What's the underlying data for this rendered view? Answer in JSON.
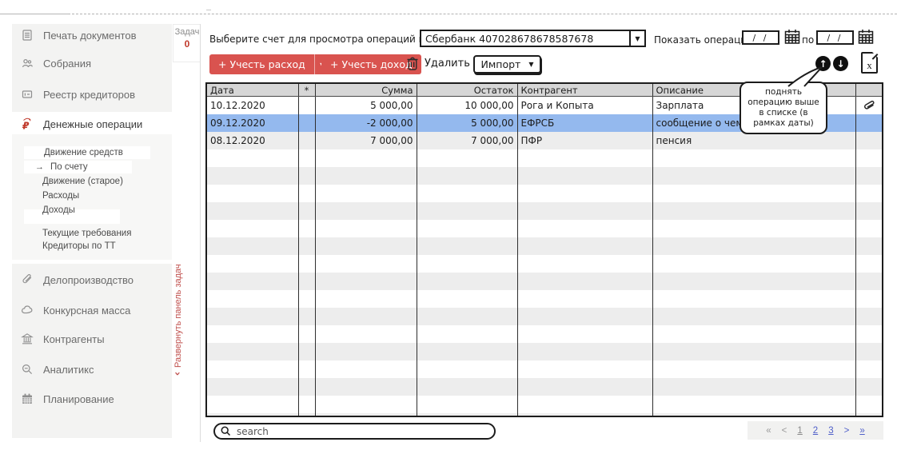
{
  "sidebar": {
    "items_top": [
      "Печать документов",
      "Собрания",
      "Реестр кредиторов"
    ],
    "active_item": "Денежные операции",
    "submenu": {
      "items": [
        "Движение средств",
        "По счету",
        "Движение (старое)",
        "Расходы",
        "Доходы",
        "Текущие требования",
        "Кредиторы по ТТ"
      ]
    },
    "items_bottom": [
      "Делопроизводство",
      "Конкурсная масса",
      "Контрагенты",
      "Аналитикс",
      "Планирование"
    ],
    "tasks_label": "Задач",
    "tasks_count": "0",
    "expand_panel_label": "Развернуть панель задач"
  },
  "toolbar": {
    "account_label": "Выберите счет для просмотра операций и остатков",
    "account_value": "Сбербанк 407028678678587678",
    "expense_button": "+ Учесть расход",
    "income_button": "+ Учесть доход",
    "delete_button": "Удалить",
    "import_dropdown": "Импорт",
    "date_filter_label": "Показать операции с",
    "date_to_label": "по",
    "date_from_value": "/ /",
    "date_to_value": "/ /"
  },
  "table": {
    "columns": [
      "Дата",
      "*",
      "Сумма",
      "Остаток",
      "Контрагент",
      "Описание"
    ],
    "rows": [
      {
        "date": "10.12.2020",
        "sum": "5 000,00",
        "balance": "10 000,00",
        "counterparty": "Рога и Копыта",
        "description": "Зарплата",
        "attachment": true
      },
      {
        "date": "09.12.2020",
        "sum": "-2 000,00",
        "balance": "5 000,00",
        "counterparty": "ЕФРСБ",
        "description": "сообщение о чем-то",
        "selected": true
      },
      {
        "date": "08.12.2020",
        "sum": "7 000,00",
        "balance": "7 000,00",
        "counterparty": "ПФР",
        "description": "пенсия"
      }
    ]
  },
  "callout": {
    "text": "поднять операцию выше в списке (в рамках даты)"
  },
  "search": {
    "placeholder": "search"
  },
  "pagination": {
    "items": [
      "«",
      "<",
      "1",
      "2",
      "3",
      ">",
      "»"
    ]
  },
  "icons": {
    "dropdown_arrow": "▾",
    "select_arrow": "▼",
    "up_arrow": "↑",
    "down_arrow": "↓",
    "excel_letter": "x",
    "submenu_marker": "→",
    "expand_chevron": "›"
  },
  "colors": {
    "accent_red": "#d9534f",
    "sidebar_red": "#c0504d",
    "selected_row": "#94b9ee",
    "link_blue": "#4f5fc9"
  }
}
